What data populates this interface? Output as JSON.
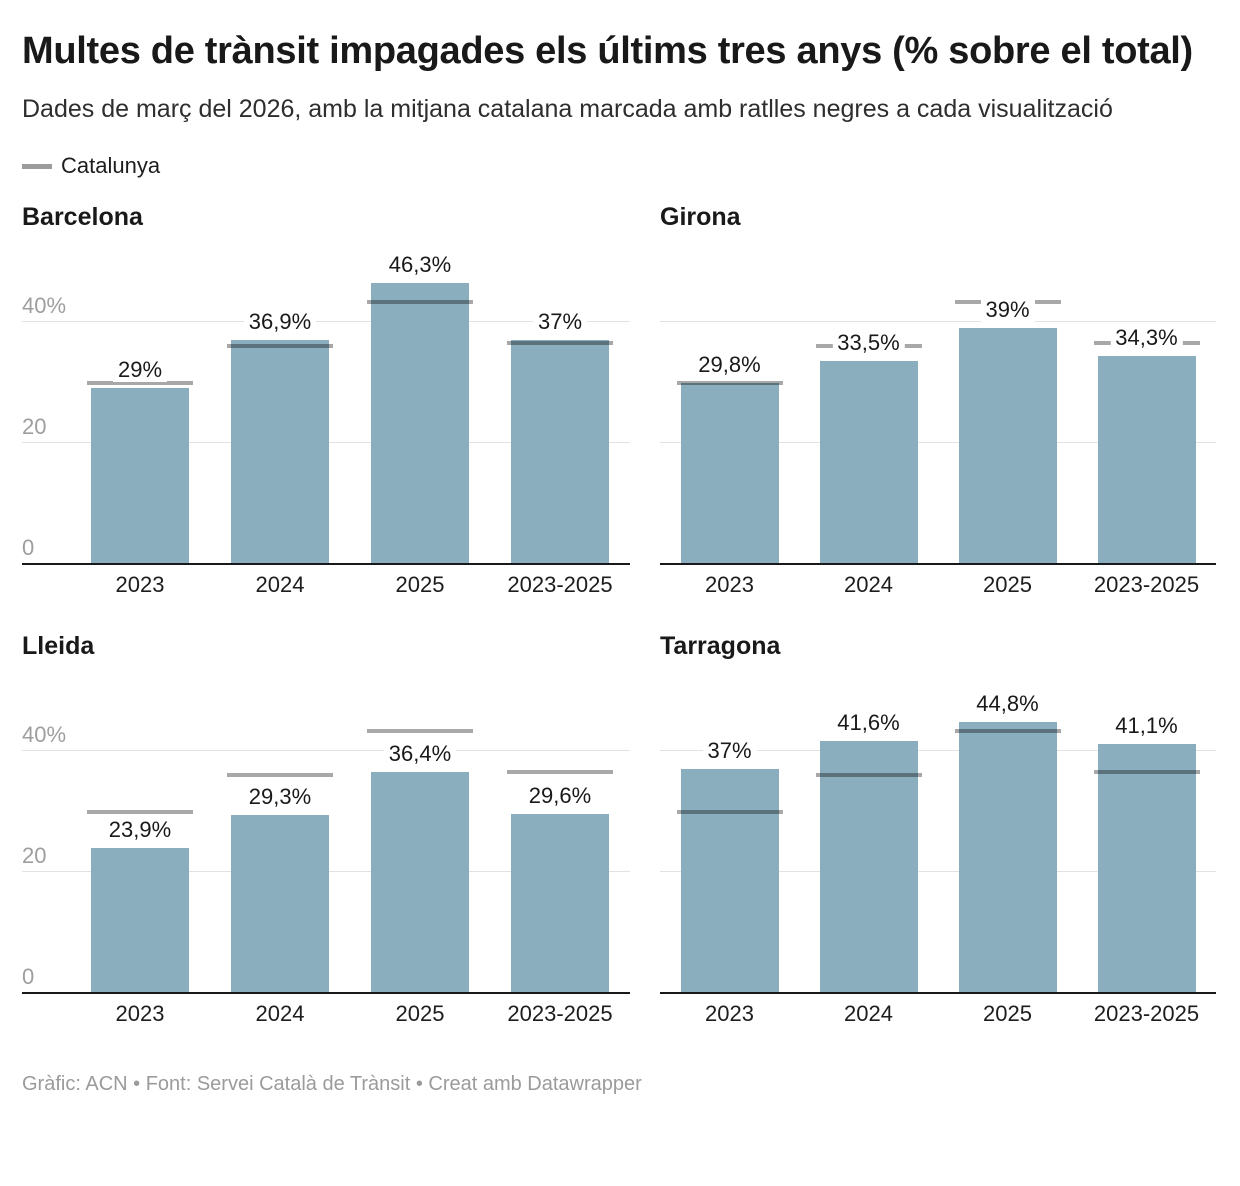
{
  "header": {
    "title": "Multes de trànsit impagades els últims tres anys (% sobre el total)",
    "subtitle": "Dades de març del 2026, amb la mitjana catalana marcada amb ratlles negres a cada visualització"
  },
  "legend": {
    "label": "Catalunya"
  },
  "footer": {
    "text": "Gràfic: ACN • Font: Servei Català de Trànsit • Creat amb Datawrapper"
  },
  "chart_data": {
    "type": "bar",
    "layout": "small-multiples-2x2",
    "categories": [
      "2023",
      "2024",
      "2025",
      "2023-2025"
    ],
    "ylim": [
      0,
      48
    ],
    "y_gridlines": [
      20,
      40
    ],
    "y_ticks": [
      {
        "value": 40,
        "label": "40%"
      },
      {
        "value": 20,
        "label": "20"
      },
      {
        "value": 0,
        "label": "0"
      }
    ],
    "reference": {
      "name": "Catalunya",
      "values": [
        29.9,
        36.0,
        43.3,
        36.4
      ]
    },
    "panels": [
      {
        "title": "Barcelona",
        "show_y_labels": true,
        "values": [
          29,
          36.9,
          46.3,
          37
        ],
        "labels": [
          "29%",
          "36,9%",
          "46,3%",
          "37%"
        ]
      },
      {
        "title": "Girona",
        "show_y_labels": false,
        "values": [
          29.8,
          33.5,
          39,
          34.3
        ],
        "labels": [
          "29,8%",
          "33,5%",
          "39%",
          "34,3%"
        ]
      },
      {
        "title": "Lleida",
        "show_y_labels": true,
        "values": [
          23.9,
          29.3,
          36.4,
          29.6
        ],
        "labels": [
          "23,9%",
          "29,3%",
          "36,4%",
          "29,6%"
        ]
      },
      {
        "title": "Tarragona",
        "show_y_labels": false,
        "values": [
          37,
          41.6,
          44.8,
          41.1
        ],
        "labels": [
          "37%",
          "41,6%",
          "44,8%",
          "41,1%"
        ]
      }
    ],
    "colors": {
      "bar": "#8aaebe",
      "reference_line": "rgba(0,0,0,0.34)",
      "gridline": "#e2e2e2",
      "axis": "#18191a"
    }
  }
}
